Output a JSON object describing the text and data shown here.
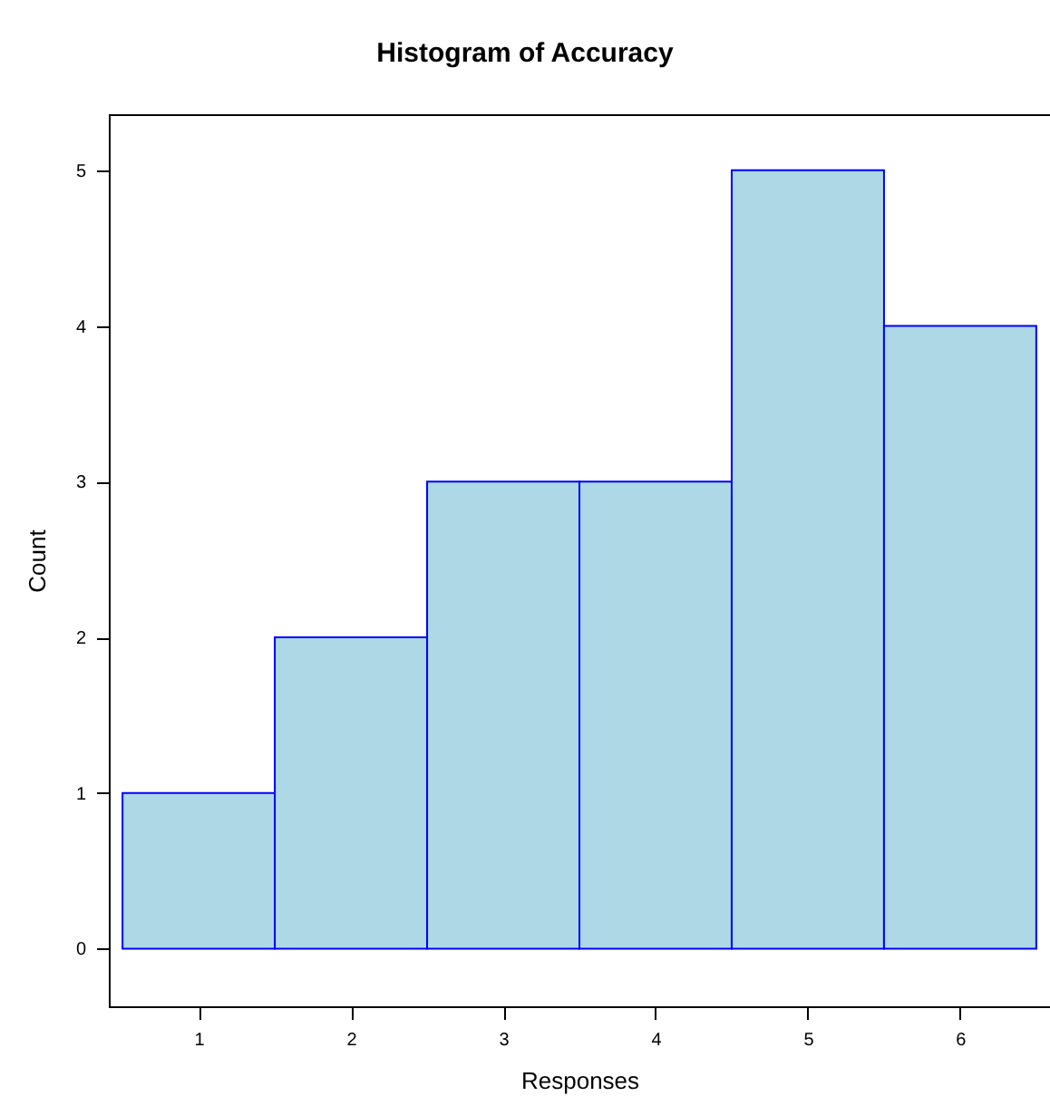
{
  "chart_data": {
    "type": "histogram",
    "title": "Histogram of Accuracy",
    "xlabel": "Responses",
    "ylabel": "Count",
    "bins": [
      0.5,
      1.5,
      2.5,
      3.5,
      4.5,
      5.5,
      6.5
    ],
    "values": [
      1,
      2,
      3,
      3,
      5,
      4
    ],
    "color": "#add8e6",
    "xlim": [
      0.41,
      6.59
    ],
    "ylim": [
      -0.37,
      5.36
    ],
    "xticks": [
      1,
      2,
      3,
      4,
      5,
      6
    ],
    "yticks": [
      0,
      1,
      2,
      3,
      4,
      5
    ],
    "grid": false
  }
}
